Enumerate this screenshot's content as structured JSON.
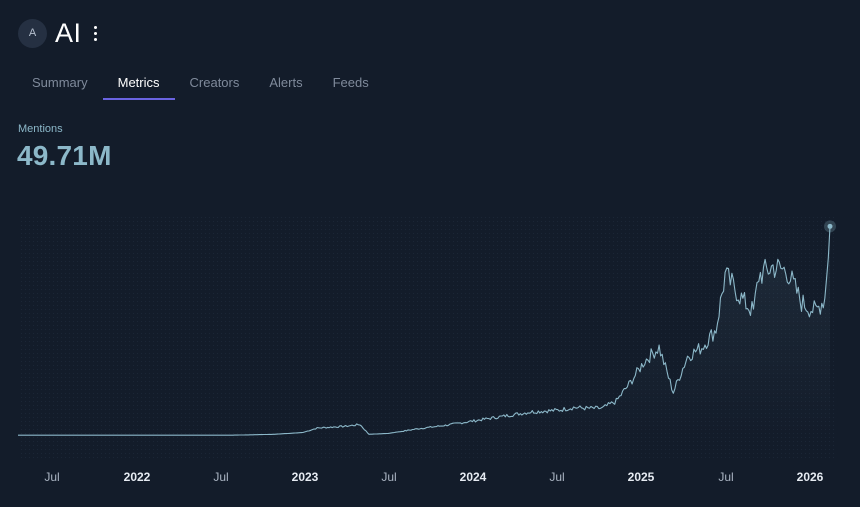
{
  "header": {
    "avatar_initial": "A",
    "title": "AI",
    "menu_icon": "kebab-menu-icon"
  },
  "tabs": [
    {
      "label": "Summary",
      "active": false
    },
    {
      "label": "Metrics",
      "active": true
    },
    {
      "label": "Creators",
      "active": false
    },
    {
      "label": "Alerts",
      "active": false
    },
    {
      "label": "Feeds",
      "active": false
    }
  ],
  "metric": {
    "label": "Mentions",
    "value": "49.71M"
  },
  "colors": {
    "background": "#131c2a",
    "line": "#8cb8c9",
    "tab_indicator": "#6a63e0"
  },
  "chart_data": {
    "type": "line",
    "title": "",
    "xlabel": "",
    "ylabel": "",
    "x_ticks": [
      "Jul",
      "2022",
      "Jul",
      "2023",
      "Jul",
      "2024",
      "Jul",
      "2025",
      "Jul",
      "2026"
    ],
    "x_range": [
      "2021-05",
      "2026-02"
    ],
    "grid": true,
    "series": [
      {
        "points": [
          [
            "2021-05",
            0.2
          ],
          [
            "2021-10",
            0.2
          ],
          [
            "2022-03",
            0.2
          ],
          [
            "2022-08",
            0.2
          ],
          [
            "2022-11",
            0.3
          ],
          [
            "2023-01",
            0.5
          ],
          [
            "2023-02",
            1.0
          ],
          [
            "2023-04",
            1.2
          ],
          [
            "2023-05",
            1.4
          ],
          [
            "2023-05-20",
            0.3
          ],
          [
            "2023-07",
            0.4
          ],
          [
            "2023-09",
            0.9
          ],
          [
            "2023-11",
            1.3
          ],
          [
            "2024-01",
            1.8
          ],
          [
            "2024-03",
            2.3
          ],
          [
            "2024-05",
            2.8
          ],
          [
            "2024-07",
            3.0
          ],
          [
            "2024-08",
            3.3
          ],
          [
            "2024-09",
            3.2
          ],
          [
            "2024-10",
            3.2
          ],
          [
            "2024-11",
            4.0
          ],
          [
            "2024-12",
            6.1
          ],
          [
            "2025-01",
            8.5
          ],
          [
            "2025-02",
            10.0
          ],
          [
            "2025-03",
            5.0
          ],
          [
            "2025-04",
            9.0
          ],
          [
            "2025-05",
            10.0
          ],
          [
            "2025-06",
            12.0
          ],
          [
            "2025-06-20",
            18.0
          ],
          [
            "2025-07",
            17.3
          ],
          [
            "2025-08",
            15.0
          ],
          [
            "2025-08-20",
            14.0
          ],
          [
            "2025-09",
            18.0
          ],
          [
            "2025-10",
            19.0
          ],
          [
            "2025-11",
            18.5
          ],
          [
            "2025-12",
            15.0
          ],
          [
            "2026-01",
            14.0
          ],
          [
            "2026-01-20",
            15.5
          ],
          [
            "2026-02",
            23.5
          ]
        ]
      }
    ]
  }
}
